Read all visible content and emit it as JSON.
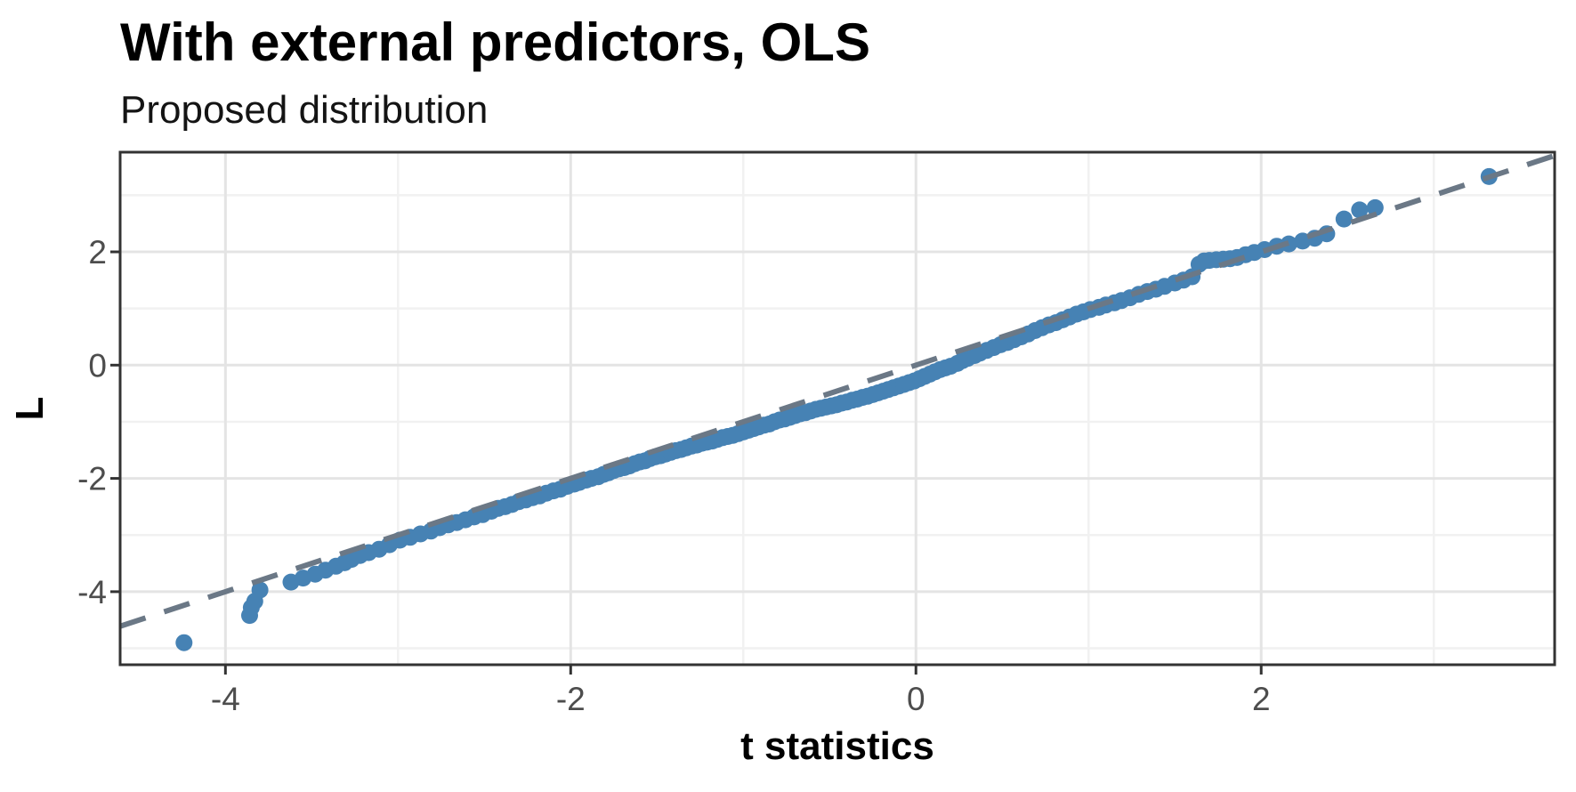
{
  "title": "With external predictors, OLS",
  "subtitle": "Proposed distribution",
  "chart_data": {
    "type": "scatter",
    "title": "With external predictors, OLS",
    "subtitle": "Proposed distribution",
    "xlabel": "t statistics",
    "ylabel": "L",
    "xlim": [
      -4.61,
      3.7
    ],
    "ylim": [
      -5.29,
      3.76
    ],
    "x_major_ticks": [
      -4,
      -2,
      0,
      2
    ],
    "x_major_labels": [
      "-4",
      "-2",
      "0",
      "2"
    ],
    "x_minor_ticks": [
      -3,
      -1,
      1,
      3
    ],
    "y_major_ticks": [
      2,
      0,
      -2,
      -4
    ],
    "y_major_labels": [
      "2",
      "0",
      "-2",
      "-4"
    ],
    "y_minor_ticks": [
      3,
      1,
      -1,
      -3,
      -5
    ],
    "grid": "on",
    "legend": "none",
    "reference_line": {
      "kind": "identity",
      "intercept": 0,
      "slope": 1,
      "style": "dashed",
      "color": "#6b7886"
    },
    "point_color": "#4682b4",
    "points": [
      [
        -4.24,
        -4.9
      ],
      [
        -3.86,
        -4.42
      ],
      [
        -3.85,
        -4.28
      ],
      [
        -3.83,
        -4.17
      ],
      [
        -3.8,
        -3.97
      ],
      [
        -3.62,
        -3.83
      ],
      [
        -3.55,
        -3.76
      ],
      [
        -3.48,
        -3.69
      ],
      [
        -3.42,
        -3.62
      ],
      [
        -3.36,
        -3.55
      ],
      [
        -3.31,
        -3.49
      ],
      [
        -3.27,
        -3.43
      ],
      [
        -3.22,
        -3.36
      ],
      [
        -3.17,
        -3.31
      ],
      [
        -3.11,
        -3.25
      ],
      [
        -3.05,
        -3.17
      ],
      [
        -2.99,
        -3.09
      ],
      [
        -2.93,
        -3.04
      ],
      [
        -2.87,
        -2.98
      ],
      [
        -2.81,
        -2.93
      ],
      [
        -2.76,
        -2.87
      ],
      [
        -2.71,
        -2.82
      ],
      [
        -2.66,
        -2.78
      ],
      [
        -2.61,
        -2.73
      ],
      [
        -2.56,
        -2.68
      ],
      [
        -2.51,
        -2.64
      ],
      [
        -2.46,
        -2.58
      ],
      [
        -2.42,
        -2.53
      ],
      [
        -2.38,
        -2.5
      ],
      [
        -2.34,
        -2.46
      ],
      [
        -2.3,
        -2.41
      ],
      [
        -2.26,
        -2.38
      ],
      [
        -2.22,
        -2.34
      ],
      [
        -2.18,
        -2.31
      ],
      [
        -2.14,
        -2.26
      ],
      [
        -2.1,
        -2.22
      ],
      [
        -2.06,
        -2.19
      ],
      [
        -2.02,
        -2.14
      ],
      [
        -1.98,
        -2.1
      ],
      [
        -1.95,
        -2.07
      ],
      [
        -1.91,
        -2.03
      ],
      [
        -1.88,
        -2.0
      ],
      [
        -1.84,
        -1.97
      ],
      [
        -1.81,
        -1.93
      ],
      [
        -1.78,
        -1.9
      ],
      [
        -1.75,
        -1.86
      ],
      [
        -1.72,
        -1.83
      ],
      [
        -1.69,
        -1.81
      ],
      [
        -1.66,
        -1.78
      ],
      [
        -1.63,
        -1.74
      ],
      [
        -1.6,
        -1.71
      ],
      [
        -1.57,
        -1.69
      ],
      [
        -1.54,
        -1.65
      ],
      [
        -1.51,
        -1.62
      ],
      [
        -1.48,
        -1.6
      ],
      [
        -1.45,
        -1.57
      ],
      [
        -1.42,
        -1.54
      ],
      [
        -1.39,
        -1.51
      ],
      [
        -1.36,
        -1.49
      ],
      [
        -1.33,
        -1.46
      ],
      [
        -1.3,
        -1.43
      ],
      [
        -1.27,
        -1.41
      ],
      [
        -1.24,
        -1.38
      ],
      [
        -1.21,
        -1.36
      ],
      [
        -1.18,
        -1.34
      ],
      [
        -1.15,
        -1.31
      ],
      [
        -1.12,
        -1.28
      ],
      [
        -1.09,
        -1.26
      ],
      [
        -1.06,
        -1.24
      ],
      [
        -1.03,
        -1.21
      ],
      [
        -1.0,
        -1.18
      ],
      [
        -0.97,
        -1.15
      ],
      [
        -0.94,
        -1.12
      ],
      [
        -0.91,
        -1.09
      ],
      [
        -0.88,
        -1.06
      ],
      [
        -0.85,
        -1.04
      ],
      [
        -0.82,
        -1.0
      ],
      [
        -0.79,
        -0.97
      ],
      [
        -0.76,
        -0.95
      ],
      [
        -0.73,
        -0.92
      ],
      [
        -0.7,
        -0.89
      ],
      [
        -0.67,
        -0.86
      ],
      [
        -0.64,
        -0.84
      ],
      [
        -0.61,
        -0.81
      ],
      [
        -0.58,
        -0.78
      ],
      [
        -0.55,
        -0.76
      ],
      [
        -0.52,
        -0.74
      ],
      [
        -0.49,
        -0.72
      ],
      [
        -0.46,
        -0.7
      ],
      [
        -0.43,
        -0.67
      ],
      [
        -0.4,
        -0.65
      ],
      [
        -0.37,
        -0.62
      ],
      [
        -0.34,
        -0.6
      ],
      [
        -0.31,
        -0.57
      ],
      [
        -0.28,
        -0.55
      ],
      [
        -0.25,
        -0.52
      ],
      [
        -0.22,
        -0.49
      ],
      [
        -0.19,
        -0.46
      ],
      [
        -0.16,
        -0.43
      ],
      [
        -0.13,
        -0.4
      ],
      [
        -0.1,
        -0.37
      ],
      [
        -0.07,
        -0.34
      ],
      [
        -0.04,
        -0.31
      ],
      [
        -0.01,
        -0.28
      ],
      [
        0.02,
        -0.24
      ],
      [
        0.05,
        -0.2
      ],
      [
        0.08,
        -0.16
      ],
      [
        0.11,
        -0.12
      ],
      [
        0.14,
        -0.08
      ],
      [
        0.17,
        -0.05
      ],
      [
        0.2,
        -0.02
      ],
      [
        0.24,
        0.03
      ],
      [
        0.27,
        0.08
      ],
      [
        0.3,
        0.12
      ],
      [
        0.34,
        0.17
      ],
      [
        0.37,
        0.21
      ],
      [
        0.41,
        0.26
      ],
      [
        0.45,
        0.31
      ],
      [
        0.49,
        0.36
      ],
      [
        0.53,
        0.4
      ],
      [
        0.57,
        0.45
      ],
      [
        0.61,
        0.5
      ],
      [
        0.65,
        0.55
      ],
      [
        0.69,
        0.61
      ],
      [
        0.73,
        0.66
      ],
      [
        0.77,
        0.71
      ],
      [
        0.81,
        0.75
      ],
      [
        0.85,
        0.8
      ],
      [
        0.89,
        0.85
      ],
      [
        0.93,
        0.9
      ],
      [
        0.97,
        0.94
      ],
      [
        1.01,
        0.98
      ],
      [
        1.06,
        1.02
      ],
      [
        1.1,
        1.06
      ],
      [
        1.15,
        1.1
      ],
      [
        1.19,
        1.14
      ],
      [
        1.24,
        1.19
      ],
      [
        1.29,
        1.25
      ],
      [
        1.34,
        1.3
      ],
      [
        1.39,
        1.34
      ],
      [
        1.44,
        1.39
      ],
      [
        1.5,
        1.45
      ],
      [
        1.55,
        1.5
      ],
      [
        1.6,
        1.56
      ],
      [
        1.64,
        1.78
      ],
      [
        1.67,
        1.84
      ],
      [
        1.7,
        1.85
      ],
      [
        1.74,
        1.86
      ],
      [
        1.78,
        1.87
      ],
      [
        1.82,
        1.88
      ],
      [
        1.86,
        1.9
      ],
      [
        1.91,
        1.95
      ],
      [
        1.96,
        1.99
      ],
      [
        2.02,
        2.04
      ],
      [
        2.09,
        2.1
      ],
      [
        2.16,
        2.14
      ],
      [
        2.24,
        2.19
      ],
      [
        2.31,
        2.24
      ],
      [
        2.38,
        2.32
      ],
      [
        2.48,
        2.58
      ],
      [
        2.57,
        2.74
      ],
      [
        2.66,
        2.78
      ],
      [
        3.32,
        3.33
      ]
    ]
  },
  "colors": {
    "point": "#4682b4",
    "reference_line": "#6b7886",
    "panel_border": "#333333",
    "tick_mark": "#333333",
    "tick_label": "#4d4d4d",
    "grid_major": "#e4e4e4",
    "grid_minor": "#f1f1f1",
    "background": "#ffffff"
  }
}
